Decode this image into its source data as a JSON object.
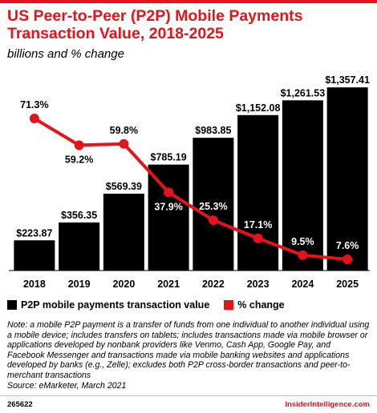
{
  "header": {
    "title": "US Peer-to-Peer (P2P) Mobile Payments Transaction Value, 2018-2025",
    "subtitle": "billions and % change"
  },
  "legend": {
    "bar_label": "P2P mobile payments transaction value",
    "line_label": "% change"
  },
  "note": "Note: a mobile P2P payment is a transfer of funds from one individual to another individual using a mobile device; includes transfers on tablets; includes transactions made via mobile browser or applications developed by nonbank providers like Venmo, Cash App, Google Pay, and Facebook Messenger and transactions made via mobile banking websites and applications developed by banks (e.g., Zelle); excludes both P2P cross-border transactions and peer-to-merchant transactions",
  "source": "Source: eMarketer, March 2021",
  "footer": {
    "chart_id": "265622",
    "brand": "InsiderIntelligence.com"
  },
  "colors": {
    "bar": "#000000",
    "line": "#e6131a",
    "accent": "#e6131a"
  },
  "chart_data": {
    "type": "bar",
    "title": "US Peer-to-Peer (P2P) Mobile Payments Transaction Value, 2018-2025",
    "subtitle": "billions and % change",
    "categories": [
      "2018",
      "2019",
      "2020",
      "2021",
      "2022",
      "2023",
      "2024",
      "2025"
    ],
    "series": [
      {
        "name": "P2P mobile payments transaction value",
        "type": "bar",
        "values": [
          223.87,
          356.35,
          569.39,
          785.19,
          983.85,
          1152.08,
          1261.53,
          1357.41
        ],
        "labels": [
          "$223.87",
          "$356.35",
          "$569.39",
          "$785.19",
          "$983.85",
          "$1,152.08",
          "$1,261.53",
          "$1,357.41"
        ]
      },
      {
        "name": "% change",
        "type": "line",
        "values": [
          71.3,
          59.2,
          59.8,
          37.9,
          25.3,
          17.1,
          9.5,
          7.6
        ],
        "labels": [
          "71.3%",
          "59.2%",
          "59.8%",
          "37.9%",
          "25.3%",
          "17.1%",
          "9.5%",
          "7.6%"
        ]
      }
    ],
    "legend_position": "bottom-left",
    "grid": false
  }
}
